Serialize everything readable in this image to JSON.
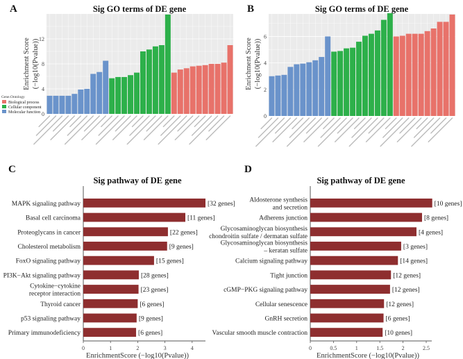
{
  "figure": {
    "colors": {
      "biological_process": "#E8726A",
      "cellular_component": "#2DB04A",
      "molecular_function": "#6A93CB",
      "pathway_bar": "#8E2E2F",
      "panel_bg": "#EBEBEB",
      "grid": "#FFFFFF"
    }
  },
  "chart_data": [
    {
      "panel": "A",
      "type": "bar",
      "title": "Sig GO terms of DE gene",
      "xlabel": "",
      "ylabel": "Enrichment Score\n(−log10(Pvalue))",
      "ylabel_lines": [
        "Enrichment Score",
        "(−log10(Pvalue))"
      ],
      "ylim": [
        0,
        16
      ],
      "yticks": [
        0,
        4,
        8,
        12
      ],
      "grid": true,
      "legend": {
        "title": "Gene.Ontology",
        "placement": "left",
        "entries": [
          {
            "label": "Biological process",
            "key": "biological_process"
          },
          {
            "label": "Cellular component",
            "key": "cellular_component"
          },
          {
            "label": "Molecular function",
            "key": "molecular_function"
          }
        ]
      },
      "categories_note": "x-axis GO term labels illegible at source resolution",
      "series": [
        {
          "name": "Molecular function",
          "key": "molecular_function",
          "values": [
            2.9,
            2.9,
            2.9,
            2.9,
            3.2,
            3.9,
            4.0,
            6.4,
            6.7,
            8.5
          ]
        },
        {
          "name": "Cellular component",
          "key": "cellular_component",
          "values": [
            5.7,
            5.9,
            5.9,
            6.2,
            6.6,
            10.0,
            10.3,
            10.8,
            11.0,
            15.9
          ]
        },
        {
          "name": "Biological process",
          "key": "biological_process",
          "values": [
            6.6,
            7.1,
            7.3,
            7.6,
            7.7,
            7.8,
            8.0,
            8.0,
            8.2,
            11.0
          ]
        }
      ]
    },
    {
      "panel": "B",
      "type": "bar",
      "title": "Sig GO terms of DE gene",
      "xlabel": "",
      "ylabel_lines": [
        "Enrichment Score",
        "(−log10(Pvalue))"
      ],
      "ylim": [
        0,
        7.7
      ],
      "yticks": [
        0,
        2,
        4,
        6
      ],
      "grid": true,
      "categories_note": "x-axis GO term labels illegible at source resolution",
      "series": [
        {
          "name": "Molecular function",
          "key": "molecular_function",
          "values": [
            3.0,
            3.05,
            3.1,
            3.7,
            3.9,
            3.95,
            4.05,
            4.2,
            4.45,
            6.0
          ]
        },
        {
          "name": "Cellular component",
          "key": "cellular_component",
          "values": [
            4.85,
            4.9,
            5.1,
            5.15,
            5.6,
            6.05,
            6.2,
            6.45,
            7.25,
            7.75
          ]
        },
        {
          "name": "Biological process",
          "key": "biological_process",
          "values": [
            6.0,
            6.05,
            6.2,
            6.2,
            6.2,
            6.4,
            6.6,
            7.1,
            7.1,
            7.65
          ]
        }
      ]
    },
    {
      "panel": "C",
      "type": "bar",
      "orientation": "horizontal",
      "title": "Sig pathway of DE gene",
      "xlabel": "EnrichmentScore (−log10(Pvalue))",
      "ylabel": "",
      "xlim": [
        0,
        4.5
      ],
      "xticks": [
        0,
        1,
        2,
        3,
        4
      ],
      "grid": false,
      "categories": [
        [
          "MAPK signaling pathway"
        ],
        [
          "Basal cell carcinoma"
        ],
        [
          "Proteoglycans in cancer"
        ],
        [
          "Cholesterol metabolism"
        ],
        [
          "FoxO signaling pathway"
        ],
        [
          "PI3K−Akt signaling pathway"
        ],
        [
          "Cytokine−cytokine",
          "receptor interaction"
        ],
        [
          "Thyroid cancer"
        ],
        [
          "p53 signaling pathway"
        ],
        [
          "Primary immunodeficiency"
        ]
      ],
      "values": [
        4.49,
        3.75,
        3.11,
        3.08,
        2.6,
        2.04,
        2.03,
        2.0,
        1.96,
        1.94
      ],
      "data_labels": [
        "[32 genes]",
        "[11 genes]",
        "[22 genes]",
        "[9 genes]",
        "[15 genes]",
        "[28 genes]",
        "[23 genes]",
        "[6 genes]",
        "[9 genes]",
        "[6 genes]"
      ]
    },
    {
      "panel": "D",
      "type": "bar",
      "orientation": "horizontal",
      "title": "Sig pathway of DE gene",
      "xlabel": "EnrichmentScore (−log10(Pvalue))",
      "ylabel": "",
      "xlim": [
        0,
        2.6
      ],
      "xticks": [
        0,
        0.5,
        1,
        1.5,
        2,
        2.5
      ],
      "grid": false,
      "categories": [
        [
          "Aldosterone synthesis",
          "and secretion"
        ],
        [
          "Adherens junction"
        ],
        [
          "Glycosaminoglycan biosynthesis",
          "chondroitin sulfate / dermatan sulfate"
        ],
        [
          "Glycosaminoglycan biosynthesis",
          "– keratan sulfate"
        ],
        [
          "Calcium signaling pathway"
        ],
        [
          "Tight junction"
        ],
        [
          "cGMP−PKG signaling pathway"
        ],
        [
          "Cellular senescence"
        ],
        [
          "GnRH secretion"
        ],
        [
          "Vascular smooth muscle contraction"
        ]
      ],
      "values": [
        2.63,
        2.41,
        2.29,
        1.96,
        1.89,
        1.74,
        1.72,
        1.59,
        1.58,
        1.56
      ],
      "data_labels": [
        "[10 genes]",
        "[8 genes]",
        "[4 genes]",
        "[3 genes]",
        "[14 genes]",
        "[12 genes]",
        "[12 genes]",
        "[12 genes]",
        "[6 genes]",
        "[10 genes]"
      ]
    }
  ]
}
